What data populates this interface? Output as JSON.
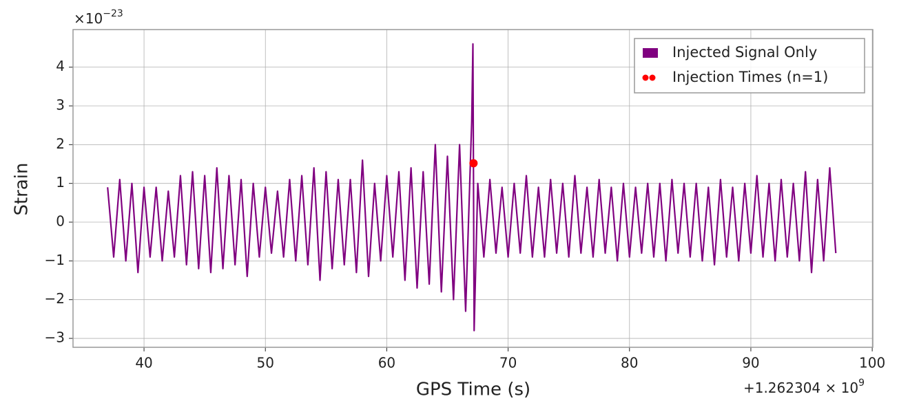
{
  "chart_data": {
    "type": "line",
    "xlabel": "GPS Time (s)",
    "ylabel": "Strain",
    "y_scale_base": "×10",
    "y_scale_exponent": "−23",
    "x_offset_base": "+1.262304 × 10",
    "x_offset_exponent": "9",
    "xlim": [
      34.15,
      100.05
    ],
    "ylim": [
      -3.23,
      4.97
    ],
    "xticks": [
      40,
      50,
      60,
      70,
      80,
      90,
      100
    ],
    "yticks": [
      {
        "value": -3,
        "label": "−3"
      },
      {
        "value": -2,
        "label": "−2"
      },
      {
        "value": -1,
        "label": "−1"
      },
      0,
      1,
      2,
      3,
      4
    ],
    "grid": true,
    "legend": "upper right",
    "x": [
      37.0,
      37.5,
      38.0,
      38.5,
      39.0,
      39.5,
      40.0,
      40.5,
      41.0,
      41.5,
      42.0,
      42.5,
      43.0,
      43.5,
      44.0,
      44.5,
      45.0,
      45.5,
      46.0,
      46.5,
      47.0,
      47.5,
      48.0,
      48.5,
      49.0,
      49.5,
      50.0,
      50.5,
      51.0,
      51.5,
      52.0,
      52.5,
      53.0,
      53.5,
      54.0,
      54.5,
      55.0,
      55.5,
      56.0,
      56.5,
      57.0,
      57.5,
      58.0,
      58.5,
      59.0,
      59.5,
      60.0,
      60.5,
      61.0,
      61.5,
      62.0,
      62.5,
      63.0,
      63.5,
      64.0,
      64.5,
      65.0,
      65.5,
      66.0,
      66.5,
      67.0,
      67.1,
      67.2,
      67.5,
      68.0,
      68.5,
      69.0,
      69.5,
      70.0,
      70.5,
      71.0,
      71.5,
      72.0,
      72.5,
      73.0,
      73.5,
      74.0,
      74.5,
      75.0,
      75.5,
      76.0,
      76.5,
      77.0,
      77.5,
      78.0,
      78.5,
      79.0,
      79.5,
      80.0,
      80.5,
      81.0,
      81.5,
      82.0,
      82.5,
      83.0,
      83.5,
      84.0,
      84.5,
      85.0,
      85.5,
      86.0,
      86.5,
      87.0,
      87.5,
      88.0,
      88.5,
      89.0,
      89.5,
      90.0,
      90.5,
      91.0,
      91.5,
      92.0,
      92.5,
      93.0,
      93.5,
      94.0,
      94.5,
      95.0,
      95.5,
      96.0,
      96.5,
      97.0
    ],
    "series": [
      {
        "name": "Injected Signal Only",
        "color": "#800080",
        "values": [
          0.9,
          -0.9,
          1.1,
          -1.0,
          1.0,
          -1.3,
          0.9,
          -0.9,
          0.9,
          -1.0,
          0.8,
          -0.9,
          1.2,
          -1.1,
          1.3,
          -1.2,
          1.2,
          -1.3,
          1.4,
          -1.2,
          1.2,
          -1.1,
          1.1,
          -1.4,
          1.0,
          -0.9,
          0.9,
          -0.8,
          0.8,
          -0.9,
          1.1,
          -1.0,
          1.2,
          -1.1,
          1.4,
          -1.5,
          1.3,
          -1.2,
          1.1,
          -1.1,
          1.1,
          -1.3,
          1.6,
          -1.4,
          1.0,
          -1.0,
          1.2,
          -0.9,
          1.3,
          -1.5,
          1.4,
          -1.7,
          1.3,
          -1.6,
          2.0,
          -1.8,
          1.7,
          -2.0,
          2.0,
          -2.3,
          2.6,
          4.6,
          -2.8,
          1.0,
          -0.9,
          1.1,
          -0.8,
          0.9,
          -0.9,
          1.0,
          -0.8,
          1.2,
          -0.9,
          0.9,
          -0.9,
          1.1,
          -0.8,
          1.0,
          -0.9,
          1.2,
          -0.8,
          0.9,
          -0.9,
          1.1,
          -0.8,
          0.9,
          -1.0,
          1.0,
          -0.9,
          0.9,
          -0.8,
          1.0,
          -0.9,
          1.0,
          -1.0,
          1.1,
          -0.8,
          1.0,
          -0.9,
          1.0,
          -1.0,
          0.9,
          -1.1,
          1.1,
          -0.9,
          0.9,
          -1.0,
          1.0,
          -0.8,
          1.2,
          -0.9,
          1.0,
          -1.0,
          1.1,
          -0.9,
          1.0,
          -1.0,
          1.3,
          -1.3,
          1.1,
          -1.0,
          1.4,
          -0.8
        ]
      },
      {
        "name": "Injection Times (n=1)",
        "color": "#ff0000",
        "style": "scatter",
        "x": [
          67.15
        ],
        "values": [
          1.52
        ]
      }
    ]
  }
}
